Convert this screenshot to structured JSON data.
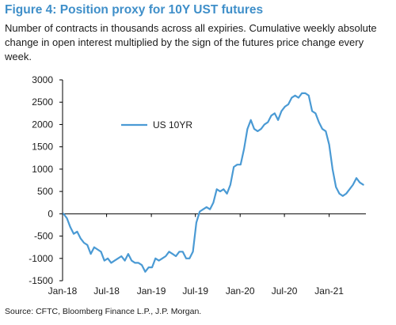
{
  "title": "Figure 4: Position proxy for 10Y UST futures",
  "subtitle": "Number of contracts in thousands across all expiries. Cumulative weekly absolute change in open interest multiplied by the sign of the futures price change every week.",
  "source": "Source: CFTC, Bloomberg Finance L.P., J.P. Morgan.",
  "colors": {
    "title": "#3f8fc9",
    "series": "#4a9ad4",
    "axis": "#000000"
  },
  "chart_data": {
    "type": "line",
    "title": "Figure 4: Position proxy for 10Y UST futures",
    "xlabel": "",
    "ylabel": "",
    "ylim": [
      -1500,
      3000
    ],
    "xlim": [
      "2018-01",
      "2021-06"
    ],
    "yticks": [
      3000,
      2500,
      2000,
      1500,
      1000,
      500,
      0,
      -500,
      -1000,
      -1500
    ],
    "ytick_labels": [
      "3000",
      "2500",
      "2000",
      "1500",
      "1000",
      "500",
      "0",
      "-500",
      "-1000",
      "-1500"
    ],
    "xticks": [
      "2018-01",
      "2018-07",
      "2019-01",
      "2019-07",
      "2020-01",
      "2020-07",
      "2021-01"
    ],
    "xtick_labels": [
      "Jan-18",
      "Jul-18",
      "Jan-19",
      "Jul-19",
      "Jan-20",
      "Jul-20",
      "Jan-21"
    ],
    "grid": false,
    "legend_position": "top-center",
    "series": [
      {
        "name": "US 10YR",
        "color": "#4a9ad4",
        "x": [
          "2018-01-05",
          "2018-01-19",
          "2018-02-02",
          "2018-02-16",
          "2018-03-02",
          "2018-03-16",
          "2018-03-30",
          "2018-04-13",
          "2018-04-27",
          "2018-05-11",
          "2018-05-25",
          "2018-06-08",
          "2018-06-22",
          "2018-07-06",
          "2018-07-20",
          "2018-08-03",
          "2018-08-17",
          "2018-08-31",
          "2018-09-14",
          "2018-09-28",
          "2018-10-12",
          "2018-10-26",
          "2018-11-09",
          "2018-11-23",
          "2018-12-07",
          "2018-12-21",
          "2019-01-04",
          "2019-01-18",
          "2019-02-01",
          "2019-02-15",
          "2019-03-01",
          "2019-03-15",
          "2019-03-29",
          "2019-04-12",
          "2019-04-26",
          "2019-05-10",
          "2019-05-24",
          "2019-06-07",
          "2019-06-21",
          "2019-07-05",
          "2019-07-19",
          "2019-08-02",
          "2019-08-16",
          "2019-08-30",
          "2019-09-13",
          "2019-09-27",
          "2019-10-11",
          "2019-10-25",
          "2019-11-08",
          "2019-11-22",
          "2019-12-06",
          "2019-12-20",
          "2020-01-03",
          "2020-01-17",
          "2020-01-31",
          "2020-02-14",
          "2020-02-28",
          "2020-03-13",
          "2020-03-27",
          "2020-04-10",
          "2020-04-24",
          "2020-05-08",
          "2020-05-22",
          "2020-06-05",
          "2020-06-19",
          "2020-07-03",
          "2020-07-17",
          "2020-07-31",
          "2020-08-14",
          "2020-08-28",
          "2020-09-11",
          "2020-09-25",
          "2020-10-09",
          "2020-10-23",
          "2020-11-06",
          "2020-11-20",
          "2020-12-04",
          "2020-12-18",
          "2021-01-01",
          "2021-01-15",
          "2021-01-29",
          "2021-02-12",
          "2021-02-26",
          "2021-03-12",
          "2021-03-26",
          "2021-04-09",
          "2021-04-23",
          "2021-05-07",
          "2021-05-21"
        ],
        "values": [
          0,
          -100,
          -300,
          -450,
          -400,
          -550,
          -650,
          -700,
          -900,
          -750,
          -800,
          -850,
          -1050,
          -1000,
          -1100,
          -1050,
          -1000,
          -950,
          -1050,
          -900,
          -1050,
          -1100,
          -1100,
          -1150,
          -1300,
          -1200,
          -1200,
          -1000,
          -1050,
          -1000,
          -950,
          -850,
          -900,
          -950,
          -850,
          -850,
          -1000,
          -1000,
          -850,
          -200,
          50,
          100,
          150,
          100,
          250,
          550,
          500,
          550,
          450,
          650,
          1050,
          1100,
          1100,
          1450,
          1900,
          2100,
          1900,
          1850,
          1900,
          2000,
          2050,
          2200,
          2250,
          2100,
          2300,
          2400,
          2450,
          2600,
          2650,
          2600,
          2700,
          2700,
          2650,
          2300,
          2250,
          2050,
          1900,
          1850,
          1550,
          1000,
          600,
          450,
          400,
          450,
          550,
          650,
          800,
          700,
          650
        ]
      }
    ]
  }
}
